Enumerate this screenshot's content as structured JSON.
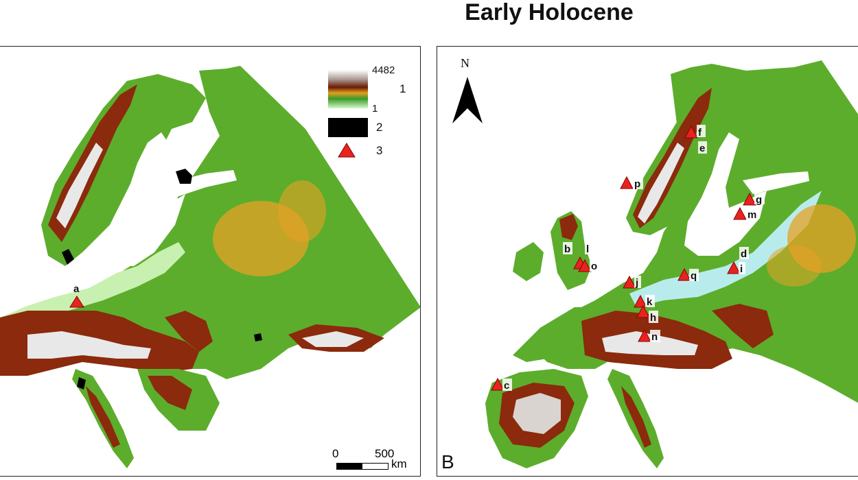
{
  "title": "Early Holocene",
  "panel_b": {
    "letter": "B",
    "north_label": "N"
  },
  "legend": {
    "elev_max": "4482",
    "elev_min": "1",
    "item1": "1",
    "item2": "2",
    "item3": "3"
  },
  "scalebar": {
    "zero": "0",
    "max": "500",
    "unit": "km"
  },
  "colors": {
    "lowland": "#c8f0b0",
    "green": "#5cad2c",
    "dark_green": "#2e8b28",
    "orange": "#e6a226",
    "brown": "#8b2a0c",
    "snow": "#eeeeee",
    "sea_ice": "#b8ecec",
    "black_area": "#000000",
    "site_marker": "#e8231f"
  },
  "sites_a": [
    "a"
  ],
  "sites_b": [
    "f",
    "e",
    "p",
    "g",
    "m",
    "b",
    "l",
    "o",
    "d",
    "i",
    "j",
    "q",
    "k",
    "h",
    "n",
    "c"
  ]
}
